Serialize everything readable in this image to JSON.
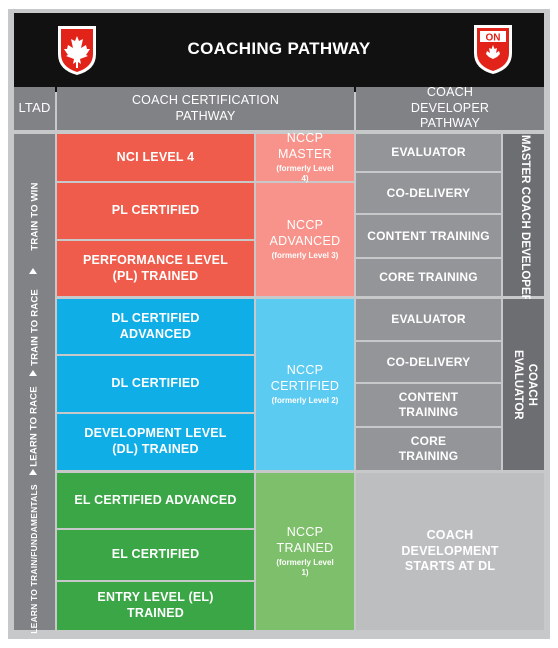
{
  "header": {
    "title": "COACHING PATHWAY",
    "left_logo_icon": "maple-leaf-crest-icon",
    "right_logo_icon": "ontario-crest-icon",
    "right_logo_text": "ON"
  },
  "columns": {
    "ltad": "LTAD",
    "certification": "COACH CERTIFICATION PATHWAY",
    "developer": "COACH DEVELOPER PATHWAY"
  },
  "ltad_stages": [
    "TRAIN TO WIN",
    "TRAIN TO RACE",
    "LEARN TO RACE",
    "LEARN TO TRAIN/FUNDAMENTALS"
  ],
  "certification_levels": {
    "red": [
      "NCI LEVEL 4",
      "PL CERTIFIED",
      "PERFORMANCE LEVEL (PL) TRAINED"
    ],
    "blue": [
      "DL CERTIFIED ADVANCED",
      "DL CERTIFIED",
      "DEVELOPMENT LEVEL (DL) TRAINED"
    ],
    "green": [
      "EL CERTIFIED ADVANCED",
      "EL CERTIFIED",
      "ENTRY LEVEL (EL) TRAINED"
    ]
  },
  "nccp": [
    {
      "title": "NCCP MASTER",
      "note": "(formerly Level 4)"
    },
    {
      "title": "NCCP ADVANCED",
      "note": "(formerly Level 3)"
    },
    {
      "title": "NCCP CERTIFIED",
      "note": "(formerly Level 2)"
    },
    {
      "title": "NCCP TRAINED",
      "note": "(formerly Level 1)"
    }
  ],
  "master_coach_developer": {
    "label": "MASTER COACH DEVELOPER",
    "items": [
      "EVALUATOR",
      "CO-DELIVERY",
      "CONTENT TRAINING",
      "CORE TRAINING"
    ]
  },
  "coach_evaluator": {
    "label": "COACH EVALUATOR",
    "items": [
      "EVALUATOR",
      "CO-DELIVERY",
      "CONTENT TRAINING",
      "CORE TRAINING"
    ]
  },
  "coach_development_note": "COACH DEVELOPMENT STARTS AT DL",
  "colors": {
    "red": "#ef5c4b",
    "red_light": "#f7938a",
    "blue": "#10aee7",
    "blue_light": "#5ccbf2",
    "green": "#3aa646",
    "green_light": "#7dbf6a",
    "gray": "#939598",
    "gray_dark": "#6d6e71",
    "header": "#111111"
  }
}
